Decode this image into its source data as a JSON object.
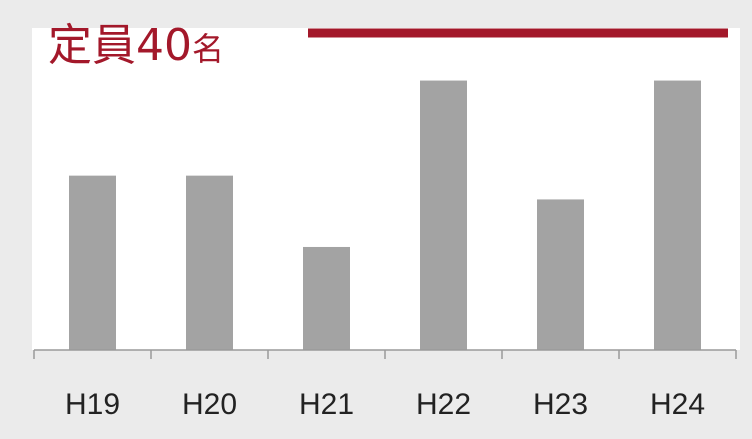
{
  "colors": {
    "background": "#ebebeb",
    "plot_area": "#ffffff",
    "bar": "#a3a3a3",
    "accent": "#a3182a",
    "axis": "#9a9a9a",
    "tick_text": "#222222"
  },
  "chart_data": {
    "type": "bar",
    "title": "",
    "xlabel": "",
    "ylabel": "",
    "categories": [
      "H19",
      "H20",
      "H21",
      "H22",
      "H23",
      "H24"
    ],
    "values": [
      22,
      22,
      13,
      34,
      19,
      34
    ],
    "ylim": [
      0,
      40
    ],
    "grid": false,
    "legend": "none",
    "reference_line": {
      "value": 40,
      "label_main": "定員40",
      "label_unit": "名"
    }
  }
}
